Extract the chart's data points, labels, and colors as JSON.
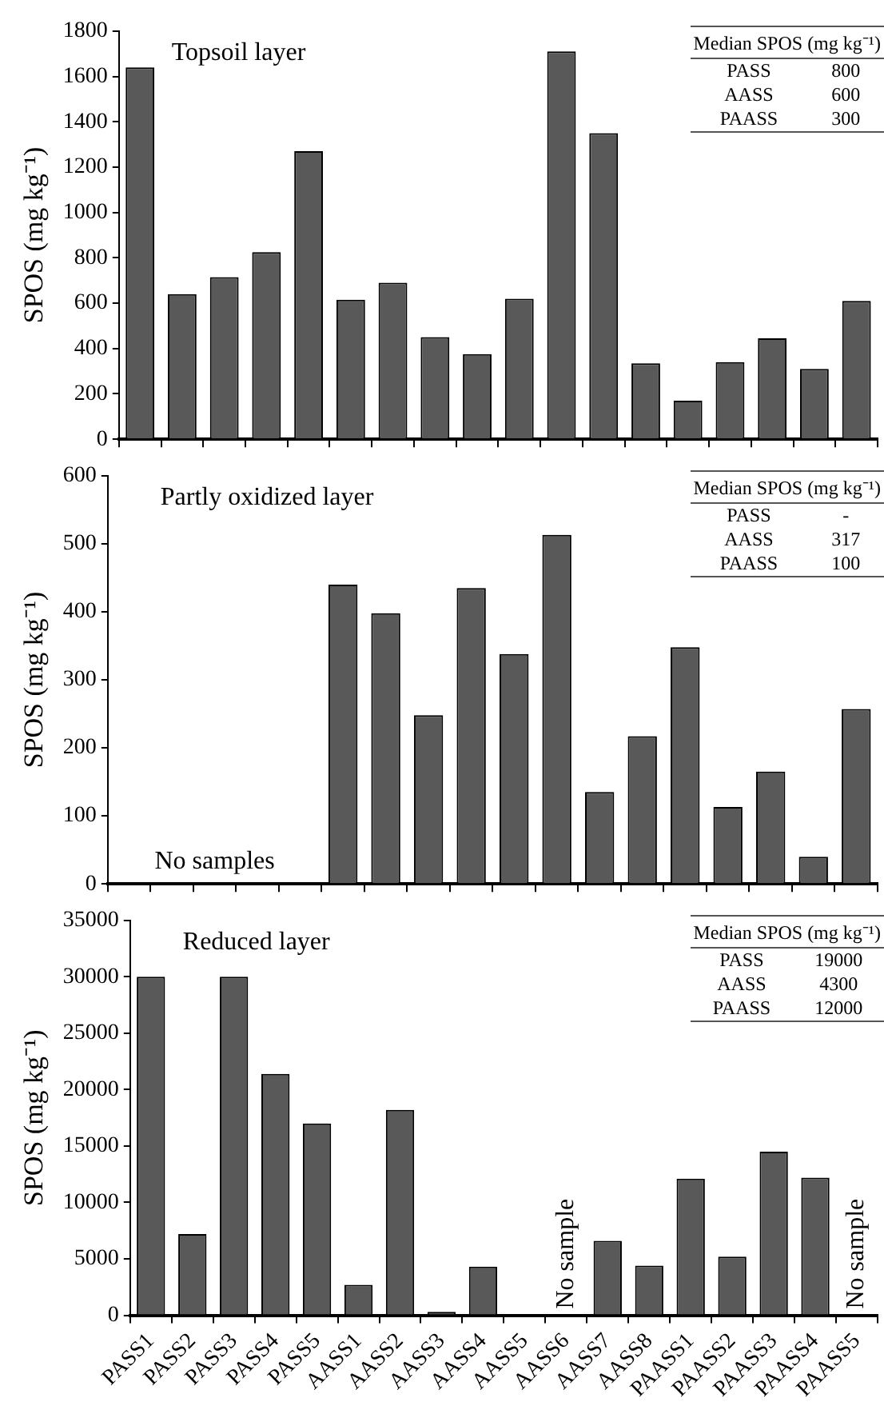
{
  "chart_data": [
    {
      "type": "bar",
      "title": "Topsoil layer",
      "ylabel": "SPOS (mg kg⁻¹)",
      "categories": [
        null,
        null,
        null,
        null,
        null,
        null,
        null,
        null,
        null,
        null,
        null,
        null,
        null,
        null,
        null,
        null,
        null,
        null
      ],
      "values": [
        1640,
        640,
        715,
        825,
        1270,
        615,
        690,
        450,
        375,
        620,
        1710,
        1350,
        335,
        170,
        340,
        445,
        310,
        610
      ],
      "color": "#595959",
      "ylim": [
        0,
        1800
      ],
      "yticks": [
        0,
        200,
        400,
        600,
        800,
        1000,
        1200,
        1400,
        1600,
        1800
      ],
      "annotations": [
        "Median SPOS (mg kg⁻¹)",
        "PASS",
        "800",
        "AASS",
        "600",
        "PAASS",
        "300"
      ]
    },
    {
      "type": "bar",
      "title": "Partly oxidized layer",
      "ylabel": "SPOS (mg kg⁻¹)",
      "categories": [
        null,
        null,
        null,
        null,
        null,
        null,
        null,
        null,
        null,
        null,
        null,
        null,
        null,
        null,
        null,
        null,
        null,
        null
      ],
      "values": [
        null,
        null,
        null,
        null,
        null,
        440,
        398,
        248,
        435,
        338,
        513,
        135,
        217,
        348,
        113,
        165,
        40,
        257
      ],
      "color": "#595959",
      "ylim": [
        0,
        600
      ],
      "yticks": [
        0,
        100,
        200,
        300,
        400,
        500,
        600
      ],
      "annotations": [
        "Median SPOS (mg kg⁻¹)",
        "PASS",
        "-",
        "AASS",
        "317",
        "PAASS",
        "100",
        "No samples"
      ]
    },
    {
      "type": "bar",
      "title": "Reduced layer",
      "ylabel": "SPOS (mg kg⁻¹)",
      "categories": [
        "PASS1",
        "PASS2",
        "PASS3",
        "PASS4",
        "PASS5",
        "AASS1",
        "AASS2",
        "AASS3",
        "AASS4",
        "AASS5",
        "AASS6",
        "AASS7",
        "AASS8",
        "PAASS1",
        "PAASS2",
        "PAASS3",
        "PAASS4",
        "PAASS5"
      ],
      "values": [
        30000,
        7200,
        30000,
        21400,
        17000,
        2700,
        18200,
        300,
        4300,
        0,
        null,
        6600,
        4400,
        12100,
        5200,
        14500,
        12200,
        null
      ],
      "color": "#595959",
      "ylim": [
        0,
        35000
      ],
      "yticks": [
        0,
        5000,
        10000,
        15000,
        20000,
        25000,
        30000,
        35000
      ],
      "annotations": [
        "Median SPOS (mg kg⁻¹)",
        "PASS",
        "19000",
        "AASS",
        "4300",
        "PAASS",
        "12000",
        "No sample",
        "No sample"
      ]
    }
  ]
}
